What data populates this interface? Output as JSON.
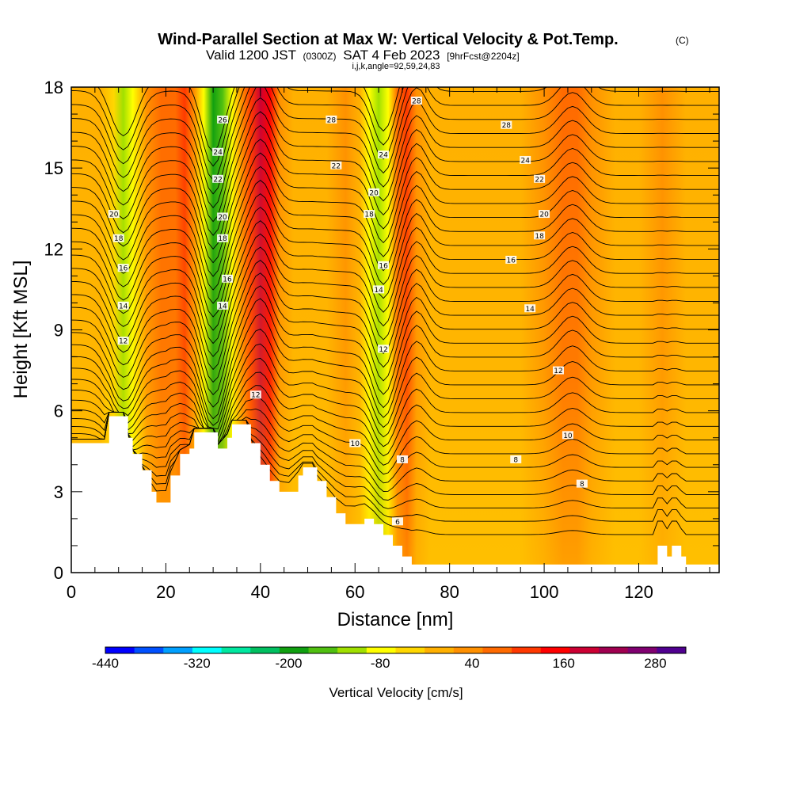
{
  "header": {
    "title": "Wind-Parallel Section at Max W: Vertical Velocity & Pot.Temp.",
    "title_mark": "(C)",
    "valid_prefix": "Valid 1200 JST",
    "valid_utc": "(0300Z)",
    "valid_date": "SAT 4 Feb 2023",
    "forecast_info": "[9hrFcst@2204z]",
    "indices": "i,j,k,angle=92,59,24,83"
  },
  "chart_data": {
    "type": "heatmap",
    "xlabel": "Distance [nm]",
    "ylabel": "Height [Kft MSL]",
    "xlim": [
      0,
      137
    ],
    "ylim": [
      0,
      18
    ],
    "x_ticks": [
      0,
      20,
      40,
      60,
      80,
      100,
      120
    ],
    "y_ticks": [
      0,
      3,
      6,
      9,
      12,
      15,
      18
    ],
    "colorbar": {
      "title": "Vertical Velocity [cm/s]",
      "min": -440,
      "max": 320,
      "step": 40,
      "tick_labels": [
        "-440",
        "-320",
        "-200",
        "-80",
        "40",
        "160",
        "280"
      ],
      "tick_values": [
        -440,
        -320,
        -200,
        -80,
        40,
        160,
        280
      ],
      "colors": [
        "#0000ff",
        "#0050ff",
        "#00a0ff",
        "#00ffff",
        "#00e8a0",
        "#00c060",
        "#10a010",
        "#50c010",
        "#a0e000",
        "#ffff00",
        "#ffd700",
        "#ffb000",
        "#ff9000",
        "#ff6a00",
        "#ff3800",
        "#ff0000",
        "#cc0033",
        "#a00050",
        "#800070",
        "#500090"
      ]
    },
    "vertical_velocity_columns": [
      {
        "x": 0,
        "w": 15
      },
      {
        "x": 3,
        "w": 20
      },
      {
        "x": 6,
        "w": 10
      },
      {
        "x": 9,
        "w": -40
      },
      {
        "x": 11,
        "w": -90
      },
      {
        "x": 13,
        "w": -60
      },
      {
        "x": 16,
        "w": 60
      },
      {
        "x": 19,
        "w": 110
      },
      {
        "x": 22,
        "w": 90
      },
      {
        "x": 24,
        "w": 130
      },
      {
        "x": 26,
        "w": 40
      },
      {
        "x": 28,
        "w": -60
      },
      {
        "x": 30,
        "w": -180
      },
      {
        "x": 32,
        "w": -150
      },
      {
        "x": 34,
        "w": -60
      },
      {
        "x": 36,
        "w": 40
      },
      {
        "x": 38,
        "w": 150
      },
      {
        "x": 40,
        "w": 230
      },
      {
        "x": 42,
        "w": 170
      },
      {
        "x": 44,
        "w": 60
      },
      {
        "x": 47,
        "w": 30
      },
      {
        "x": 50,
        "w": 20
      },
      {
        "x": 54,
        "w": 30
      },
      {
        "x": 58,
        "w": 40
      },
      {
        "x": 61,
        "w": 10
      },
      {
        "x": 63,
        "w": -50
      },
      {
        "x": 65,
        "w": -120
      },
      {
        "x": 67,
        "w": -80
      },
      {
        "x": 69,
        "w": 80
      },
      {
        "x": 71,
        "w": 120
      },
      {
        "x": 73,
        "w": 60
      },
      {
        "x": 76,
        "w": 20
      },
      {
        "x": 80,
        "w": 10
      },
      {
        "x": 85,
        "w": 0
      },
      {
        "x": 90,
        "w": 10
      },
      {
        "x": 95,
        "w": 20
      },
      {
        "x": 100,
        "w": 40
      },
      {
        "x": 104,
        "w": 90
      },
      {
        "x": 107,
        "w": 110
      },
      {
        "x": 110,
        "w": 50
      },
      {
        "x": 115,
        "w": 20
      },
      {
        "x": 120,
        "w": 10
      },
      {
        "x": 125,
        "w": 40
      },
      {
        "x": 130,
        "w": 20
      },
      {
        "x": 137,
        "w": 10
      }
    ],
    "terrain": [
      {
        "x": 0,
        "h": 4.8
      },
      {
        "x": 7,
        "h": 4.8
      },
      {
        "x": 8,
        "h": 5.8
      },
      {
        "x": 11,
        "h": 5.8
      },
      {
        "x": 12,
        "h": 5.0
      },
      {
        "x": 13,
        "h": 4.4
      },
      {
        "x": 15,
        "h": 3.8
      },
      {
        "x": 17,
        "h": 3.0
      },
      {
        "x": 18,
        "h": 2.6
      },
      {
        "x": 20,
        "h": 2.6
      },
      {
        "x": 21,
        "h": 3.6
      },
      {
        "x": 23,
        "h": 4.4
      },
      {
        "x": 25,
        "h": 4.6
      },
      {
        "x": 26,
        "h": 5.2
      },
      {
        "x": 30,
        "h": 5.2
      },
      {
        "x": 31,
        "h": 4.6
      },
      {
        "x": 33,
        "h": 5.0
      },
      {
        "x": 34,
        "h": 5.5
      },
      {
        "x": 37,
        "h": 5.5
      },
      {
        "x": 38,
        "h": 4.8
      },
      {
        "x": 40,
        "h": 4.0
      },
      {
        "x": 42,
        "h": 3.4
      },
      {
        "x": 44,
        "h": 3.0
      },
      {
        "x": 46,
        "h": 3.0
      },
      {
        "x": 48,
        "h": 3.6
      },
      {
        "x": 49,
        "h": 3.9
      },
      {
        "x": 51,
        "h": 3.9
      },
      {
        "x": 52,
        "h": 3.4
      },
      {
        "x": 54,
        "h": 2.8
      },
      {
        "x": 56,
        "h": 2.2
      },
      {
        "x": 58,
        "h": 1.8
      },
      {
        "x": 60,
        "h": 1.8
      },
      {
        "x": 62,
        "h": 2.0
      },
      {
        "x": 64,
        "h": 1.8
      },
      {
        "x": 66,
        "h": 1.4
      },
      {
        "x": 68,
        "h": 1.0
      },
      {
        "x": 70,
        "h": 0.6
      },
      {
        "x": 72,
        "h": 0.3
      },
      {
        "x": 123,
        "h": 0.3
      },
      {
        "x": 124,
        "h": 1.0
      },
      {
        "x": 125,
        "h": 1.0
      },
      {
        "x": 126,
        "h": 0.6
      },
      {
        "x": 127,
        "h": 1.0
      },
      {
        "x": 128,
        "h": 1.0
      },
      {
        "x": 129,
        "h": 0.6
      },
      {
        "x": 130,
        "h": 0.3
      },
      {
        "x": 137,
        "h": 0.3
      }
    ],
    "isentrope_levels": [
      6,
      8,
      10,
      12,
      14,
      16,
      18,
      20,
      22,
      24,
      26,
      28
    ],
    "contour_labels": [
      {
        "text": "28",
        "x": 55,
        "y": 16.8
      },
      {
        "text": "28",
        "x": 73,
        "y": 17.5
      },
      {
        "text": "28",
        "x": 92,
        "y": 16.6
      },
      {
        "text": "26",
        "x": 32,
        "y": 16.8
      },
      {
        "text": "24",
        "x": 31,
        "y": 15.6
      },
      {
        "text": "24",
        "x": 66,
        "y": 15.5
      },
      {
        "text": "24",
        "x": 96,
        "y": 15.3
      },
      {
        "text": "22",
        "x": 31,
        "y": 14.6
      },
      {
        "text": "22",
        "x": 56,
        "y": 15.1
      },
      {
        "text": "22",
        "x": 99,
        "y": 14.6
      },
      {
        "text": "20",
        "x": 9,
        "y": 13.3
      },
      {
        "text": "20",
        "x": 32,
        "y": 13.2
      },
      {
        "text": "20",
        "x": 64,
        "y": 14.1
      },
      {
        "text": "20",
        "x": 100,
        "y": 13.3
      },
      {
        "text": "18",
        "x": 10,
        "y": 12.4
      },
      {
        "text": "18",
        "x": 32,
        "y": 12.4
      },
      {
        "text": "18",
        "x": 63,
        "y": 13.3
      },
      {
        "text": "18",
        "x": 99,
        "y": 12.5
      },
      {
        "text": "16",
        "x": 11,
        "y": 11.3
      },
      {
        "text": "16",
        "x": 33,
        "y": 10.9
      },
      {
        "text": "16",
        "x": 66,
        "y": 11.4
      },
      {
        "text": "16",
        "x": 93,
        "y": 11.6
      },
      {
        "text": "14",
        "x": 11,
        "y": 9.9
      },
      {
        "text": "14",
        "x": 32,
        "y": 9.9
      },
      {
        "text": "14",
        "x": 65,
        "y": 10.5
      },
      {
        "text": "14",
        "x": 97,
        "y": 9.8
      },
      {
        "text": "12",
        "x": 11,
        "y": 8.6
      },
      {
        "text": "12",
        "x": 39,
        "y": 6.6
      },
      {
        "text": "12",
        "x": 66,
        "y": 8.3
      },
      {
        "text": "12",
        "x": 103,
        "y": 7.5
      },
      {
        "text": "10",
        "x": 60,
        "y": 4.8
      },
      {
        "text": "10",
        "x": 105,
        "y": 5.1
      },
      {
        "text": "8",
        "x": 70,
        "y": 4.2
      },
      {
        "text": "8",
        "x": 94,
        "y": 4.2
      },
      {
        "text": "8",
        "x": 108,
        "y": 3.3
      },
      {
        "text": "6",
        "x": 69,
        "y": 1.9
      }
    ]
  }
}
